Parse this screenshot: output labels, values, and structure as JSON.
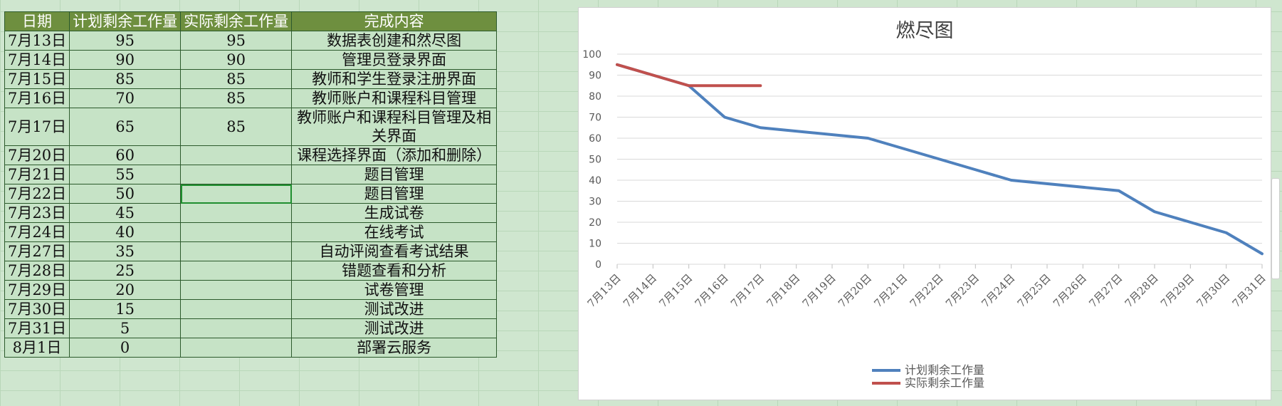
{
  "sheet": {
    "headers": [
      "日期",
      "计划剩余工作量",
      "实际剩余工作量",
      "完成内容"
    ],
    "rows": [
      {
        "date": "7月13日",
        "planned": "95",
        "actual": "95",
        "content": "数据表创建和然尽图"
      },
      {
        "date": "7月14日",
        "planned": "90",
        "actual": "90",
        "content": "管理员登录界面"
      },
      {
        "date": "7月15日",
        "planned": "85",
        "actual": "85",
        "content": "教师和学生登录注册界面"
      },
      {
        "date": "7月16日",
        "planned": "70",
        "actual": "85",
        "content": "教师账户和课程科目管理"
      },
      {
        "date": "7月17日",
        "planned": "65",
        "actual": "85",
        "content": "教师账户和课程科目管理及相关界面"
      },
      {
        "date": "7月20日",
        "planned": "60",
        "actual": "",
        "content": "课程选择界面（添加和删除）"
      },
      {
        "date": "7月21日",
        "planned": "55",
        "actual": "",
        "content": "题目管理"
      },
      {
        "date": "7月22日",
        "planned": "50",
        "actual": "",
        "content": "题目管理"
      },
      {
        "date": "7月23日",
        "planned": "45",
        "actual": "",
        "content": "生成试卷"
      },
      {
        "date": "7月24日",
        "planned": "40",
        "actual": "",
        "content": "在线考试"
      },
      {
        "date": "7月27日",
        "planned": "35",
        "actual": "",
        "content": "自动评阅查看考试结果"
      },
      {
        "date": "7月28日",
        "planned": "25",
        "actual": "",
        "content": "错题查看和分析"
      },
      {
        "date": "7月29日",
        "planned": "20",
        "actual": "",
        "content": "试卷管理"
      },
      {
        "date": "7月30日",
        "planned": "15",
        "actual": "",
        "content": "测试改进"
      },
      {
        "date": "7月31日",
        "planned": "5",
        "actual": "",
        "content": "测试改进"
      },
      {
        "date": "8月1日",
        "planned": "0",
        "actual": "",
        "content": "部署云服务"
      }
    ]
  },
  "chart_data": {
    "type": "line",
    "title": "燃尽图",
    "x": [
      "7月13日",
      "7月14日",
      "7月15日",
      "7月16日",
      "7月17日",
      "7月18日",
      "7月19日",
      "7月20日",
      "7月21日",
      "7月22日",
      "7月23日",
      "7月24日",
      "7月25日",
      "7月26日",
      "7月27日",
      "7月28日",
      "7月29日",
      "7月30日",
      "7月31日"
    ],
    "ylim": [
      0,
      100
    ],
    "yticks": [
      "0",
      "10",
      "20",
      "30",
      "40",
      "50",
      "60",
      "70",
      "80",
      "90",
      "100"
    ],
    "grid": true,
    "legend_position": "bottom",
    "series": [
      {
        "name": "计划剩余工作量",
        "color": "#4f81bd",
        "points": [
          {
            "x": "7月13日",
            "y": 95
          },
          {
            "x": "7月14日",
            "y": 90
          },
          {
            "x": "7月15日",
            "y": 85
          },
          {
            "x": "7月16日",
            "y": 70
          },
          {
            "x": "7月17日",
            "y": 65
          },
          {
            "x": "7月20日",
            "y": 60
          },
          {
            "x": "7月21日",
            "y": 55
          },
          {
            "x": "7月22日",
            "y": 50
          },
          {
            "x": "7月23日",
            "y": 45
          },
          {
            "x": "7月24日",
            "y": 40
          },
          {
            "x": "7月27日",
            "y": 35
          },
          {
            "x": "7月28日",
            "y": 25
          },
          {
            "x": "7月29日",
            "y": 20
          },
          {
            "x": "7月30日",
            "y": 15
          },
          {
            "x": "7月31日",
            "y": 5
          }
        ]
      },
      {
        "name": "实际剩余工作量",
        "color": "#c0504d",
        "points": [
          {
            "x": "7月13日",
            "y": 95
          },
          {
            "x": "7月14日",
            "y": 90
          },
          {
            "x": "7月15日",
            "y": 85
          },
          {
            "x": "7月16日",
            "y": 85
          },
          {
            "x": "7月17日",
            "y": 85
          }
        ]
      }
    ]
  }
}
